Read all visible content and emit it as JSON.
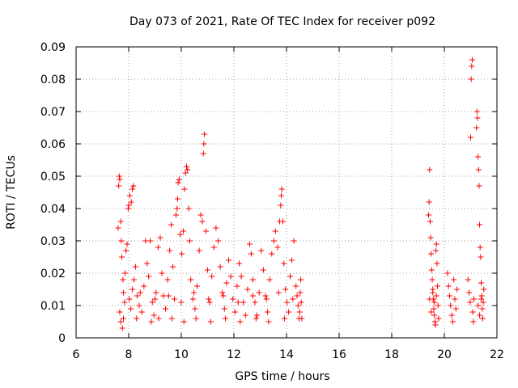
{
  "chart_data": {
    "type": "scatter",
    "title": "Day 073 of 2021, Rate Of TEC Index for receiver p092",
    "xlabel": "GPS time / hours",
    "ylabel": "ROTI / TECUs",
    "xlim": [
      6,
      22
    ],
    "ylim": [
      0,
      0.09
    ],
    "grid": true,
    "marker": "+",
    "color": "#ff0000",
    "xticks": [
      6,
      8,
      10,
      12,
      14,
      16,
      18,
      20,
      22
    ],
    "xtick_labels": [
      "6",
      "8",
      "10",
      "12",
      "14",
      "16",
      "18",
      "20",
      "22"
    ],
    "yticks": [
      0,
      0.01,
      0.02,
      0.03,
      0.04,
      0.05,
      0.06,
      0.07,
      0.08,
      0.09
    ],
    "ytick_labels": [
      "0",
      "0.01",
      "0.02",
      "0.03",
      "0.04",
      "0.05",
      "0.06",
      "0.07",
      "0.08",
      "0.09"
    ],
    "series": [
      {
        "name": "p092",
        "points": [
          [
            7.6,
            0.034
          ],
          [
            7.62,
            0.047
          ],
          [
            7.64,
            0.05
          ],
          [
            7.66,
            0.049
          ],
          [
            7.7,
            0.036
          ],
          [
            7.72,
            0.03
          ],
          [
            7.74,
            0.025
          ],
          [
            7.78,
            0.018
          ],
          [
            7.8,
            0.014
          ],
          [
            7.84,
            0.011
          ],
          [
            7.66,
            0.008
          ],
          [
            7.7,
            0.005
          ],
          [
            7.76,
            0.003
          ],
          [
            7.8,
            0.006
          ],
          [
            7.86,
            0.02
          ],
          [
            7.9,
            0.027
          ],
          [
            7.94,
            0.029
          ],
          [
            7.98,
            0.04
          ],
          [
            8.0,
            0.041
          ],
          [
            8.04,
            0.044
          ],
          [
            8.1,
            0.042
          ],
          [
            8.14,
            0.046
          ],
          [
            8.18,
            0.047
          ],
          [
            8.02,
            0.012
          ],
          [
            8.08,
            0.009
          ],
          [
            8.14,
            0.015
          ],
          [
            8.2,
            0.018
          ],
          [
            8.26,
            0.022
          ],
          [
            8.32,
            0.013
          ],
          [
            8.4,
            0.01
          ],
          [
            8.5,
            0.008
          ],
          [
            8.58,
            0.016
          ],
          [
            8.64,
            0.03
          ],
          [
            8.7,
            0.023
          ],
          [
            8.76,
            0.019
          ],
          [
            8.82,
            0.03
          ],
          [
            8.9,
            0.011
          ],
          [
            8.96,
            0.007
          ],
          [
            9.04,
            0.014
          ],
          [
            9.12,
            0.028
          ],
          [
            9.2,
            0.031
          ],
          [
            9.26,
            0.02
          ],
          [
            9.32,
            0.013
          ],
          [
            9.4,
            0.009
          ],
          [
            9.48,
            0.018
          ],
          [
            9.56,
            0.027
          ],
          [
            9.62,
            0.035
          ],
          [
            9.68,
            0.022
          ],
          [
            9.74,
            0.012
          ],
          [
            9.8,
            0.038
          ],
          [
            9.84,
            0.04
          ],
          [
            9.86,
            0.043
          ],
          [
            9.88,
            0.048
          ],
          [
            9.92,
            0.049
          ],
          [
            9.96,
            0.032
          ],
          [
            10.02,
            0.026
          ],
          [
            10.08,
            0.033
          ],
          [
            10.12,
            0.046
          ],
          [
            10.16,
            0.051
          ],
          [
            10.2,
            0.053
          ],
          [
            10.24,
            0.052
          ],
          [
            10.28,
            0.04
          ],
          [
            10.32,
            0.03
          ],
          [
            10.36,
            0.018
          ],
          [
            10.44,
            0.012
          ],
          [
            10.52,
            0.009
          ],
          [
            10.6,
            0.016
          ],
          [
            10.68,
            0.027
          ],
          [
            10.74,
            0.038
          ],
          [
            10.8,
            0.036
          ],
          [
            10.84,
            0.057
          ],
          [
            10.86,
            0.06
          ],
          [
            10.88,
            0.063
          ],
          [
            10.94,
            0.033
          ],
          [
            11.0,
            0.021
          ],
          [
            11.08,
            0.011
          ],
          [
            11.16,
            0.019
          ],
          [
            11.24,
            0.028
          ],
          [
            11.32,
            0.034
          ],
          [
            11.4,
            0.03
          ],
          [
            11.48,
            0.022
          ],
          [
            11.56,
            0.014
          ],
          [
            11.64,
            0.009
          ],
          [
            11.72,
            0.017
          ],
          [
            11.8,
            0.024
          ],
          [
            11.88,
            0.019
          ],
          [
            11.96,
            0.012
          ],
          [
            12.04,
            0.008
          ],
          [
            12.12,
            0.016
          ],
          [
            12.2,
            0.023
          ],
          [
            12.28,
            0.019
          ],
          [
            12.36,
            0.011
          ],
          [
            12.44,
            0.007
          ],
          [
            12.52,
            0.015
          ],
          [
            12.6,
            0.029
          ],
          [
            12.66,
            0.026
          ],
          [
            12.72,
            0.018
          ],
          [
            12.8,
            0.011
          ],
          [
            12.88,
            0.007
          ],
          [
            12.96,
            0.014
          ],
          [
            13.04,
            0.027
          ],
          [
            13.12,
            0.021
          ],
          [
            13.2,
            0.013
          ],
          [
            13.28,
            0.008
          ],
          [
            13.36,
            0.018
          ],
          [
            13.44,
            0.026
          ],
          [
            13.52,
            0.03
          ],
          [
            13.58,
            0.033
          ],
          [
            13.66,
            0.028
          ],
          [
            13.74,
            0.036
          ],
          [
            13.78,
            0.041
          ],
          [
            13.8,
            0.044
          ],
          [
            13.82,
            0.046
          ],
          [
            13.86,
            0.036
          ],
          [
            13.9,
            0.023
          ],
          [
            13.96,
            0.015
          ],
          [
            14.02,
            0.011
          ],
          [
            14.08,
            0.008
          ],
          [
            14.14,
            0.019
          ],
          [
            14.2,
            0.024
          ],
          [
            14.28,
            0.03
          ],
          [
            14.36,
            0.016
          ],
          [
            14.4,
            0.013
          ],
          [
            14.44,
            0.01
          ],
          [
            14.48,
            0.006
          ],
          [
            14.5,
            0.008
          ],
          [
            14.52,
            0.014
          ],
          [
            14.54,
            0.018
          ],
          [
            14.56,
            0.011
          ],
          [
            14.58,
            0.006
          ],
          [
            8.3,
            0.006
          ],
          [
            8.86,
            0.005
          ],
          [
            9.14,
            0.006
          ],
          [
            9.64,
            0.006
          ],
          [
            10.1,
            0.005
          ],
          [
            10.56,
            0.006
          ],
          [
            11.12,
            0.005
          ],
          [
            11.68,
            0.006
          ],
          [
            12.24,
            0.005
          ],
          [
            12.84,
            0.006
          ],
          [
            13.32,
            0.005
          ],
          [
            13.92,
            0.006
          ],
          [
            8.44,
            0.014
          ],
          [
            9.0,
            0.012
          ],
          [
            9.52,
            0.013
          ],
          [
            10.0,
            0.011
          ],
          [
            10.48,
            0.014
          ],
          [
            11.04,
            0.012
          ],
          [
            11.6,
            0.013
          ],
          [
            12.16,
            0.011
          ],
          [
            12.72,
            0.013
          ],
          [
            13.24,
            0.012
          ],
          [
            13.7,
            0.014
          ],
          [
            14.24,
            0.012
          ],
          [
            19.4,
            0.038
          ],
          [
            19.42,
            0.042
          ],
          [
            19.44,
            0.052
          ],
          [
            19.46,
            0.036
          ],
          [
            19.48,
            0.031
          ],
          [
            19.5,
            0.026
          ],
          [
            19.52,
            0.021
          ],
          [
            19.54,
            0.018
          ],
          [
            19.56,
            0.015
          ],
          [
            19.58,
            0.012
          ],
          [
            19.6,
            0.009
          ],
          [
            19.62,
            0.007
          ],
          [
            19.64,
            0.005
          ],
          [
            19.66,
            0.004
          ],
          [
            19.68,
            0.027
          ],
          [
            19.7,
            0.029
          ],
          [
            19.72,
            0.023
          ],
          [
            19.74,
            0.016
          ],
          [
            19.76,
            0.01
          ],
          [
            19.78,
            0.006
          ],
          [
            19.44,
            0.012
          ],
          [
            19.5,
            0.008
          ],
          [
            19.56,
            0.014
          ],
          [
            19.62,
            0.011
          ],
          [
            19.7,
            0.013
          ],
          [
            20.12,
            0.02
          ],
          [
            20.16,
            0.016
          ],
          [
            20.2,
            0.013
          ],
          [
            20.24,
            0.01
          ],
          [
            20.28,
            0.007
          ],
          [
            20.32,
            0.005
          ],
          [
            20.36,
            0.018
          ],
          [
            20.4,
            0.012
          ],
          [
            20.44,
            0.009
          ],
          [
            20.48,
            0.015
          ],
          [
            20.9,
            0.018
          ],
          [
            20.94,
            0.014
          ],
          [
            20.98,
            0.011
          ],
          [
            21.0,
            0.062
          ],
          [
            21.02,
            0.08
          ],
          [
            21.04,
            0.084
          ],
          [
            21.06,
            0.086
          ],
          [
            21.08,
            0.008
          ],
          [
            21.1,
            0.005
          ],
          [
            21.12,
            0.012
          ],
          [
            21.22,
            0.065
          ],
          [
            21.24,
            0.07
          ],
          [
            21.26,
            0.068
          ],
          [
            21.28,
            0.056
          ],
          [
            21.3,
            0.052
          ],
          [
            21.32,
            0.047
          ],
          [
            21.34,
            0.035
          ],
          [
            21.36,
            0.028
          ],
          [
            21.38,
            0.025
          ],
          [
            21.4,
            0.017
          ],
          [
            21.42,
            0.013
          ],
          [
            21.44,
            0.009
          ],
          [
            21.46,
            0.006
          ],
          [
            21.48,
            0.011
          ],
          [
            21.5,
            0.015
          ],
          [
            21.28,
            0.01
          ],
          [
            21.34,
            0.007
          ],
          [
            21.4,
            0.012
          ]
        ]
      }
    ]
  }
}
